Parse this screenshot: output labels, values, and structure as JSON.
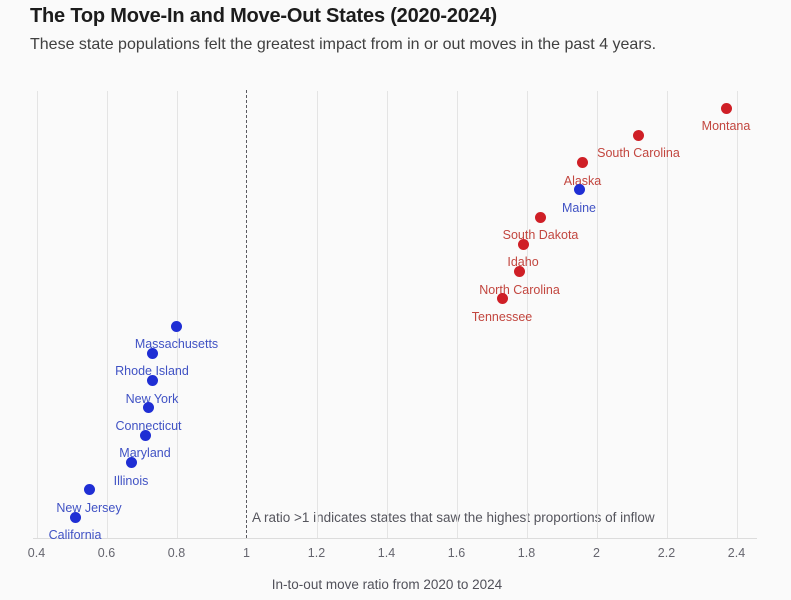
{
  "chart_data": {
    "type": "scatter",
    "title": "The Top Move-In and Move-Out States (2020-2024)",
    "subtitle": "These state populations felt the greatest impact from in or out moves in the past 4 years.",
    "xlabel": "In-to-out move ratio from 2020 to 2024",
    "ylabel": "",
    "y_encoding": "rank order, highest ratio at top",
    "xlim": [
      0.39,
      2.46
    ],
    "x_ticks": [
      0.4,
      0.6,
      0.8,
      1,
      1.2,
      1.4,
      1.6,
      1.8,
      2,
      2.2,
      2.4
    ],
    "x_tick_labels": [
      "0.4",
      "0.6",
      "0.8",
      "1",
      "1.2",
      "1.4",
      "1.6",
      "1.8",
      "2",
      "2.2",
      "2.4"
    ],
    "grid": "vertical gridlines only",
    "legend": "none",
    "reference_line_x": 1,
    "annotation": "A ratio >1 indicates states that saw the highest proportions of inflow",
    "points": [
      {
        "state": "Montana",
        "ratio": 2.37,
        "color_group": "red"
      },
      {
        "state": "South Carolina",
        "ratio": 2.12,
        "color_group": "red"
      },
      {
        "state": "Alaska",
        "ratio": 1.96,
        "color_group": "red"
      },
      {
        "state": "Maine",
        "ratio": 1.95,
        "color_group": "blue"
      },
      {
        "state": "South Dakota",
        "ratio": 1.84,
        "color_group": "red"
      },
      {
        "state": "Idaho",
        "ratio": 1.79,
        "color_group": "red"
      },
      {
        "state": "North Carolina",
        "ratio": 1.78,
        "color_group": "red"
      },
      {
        "state": "Tennessee",
        "ratio": 1.73,
        "color_group": "red"
      },
      {
        "state": "Massachusetts",
        "ratio": 0.8,
        "color_group": "blue"
      },
      {
        "state": "Rhode Island",
        "ratio": 0.73,
        "color_group": "blue"
      },
      {
        "state": "New York",
        "ratio": 0.73,
        "color_group": "blue"
      },
      {
        "state": "Connecticut",
        "ratio": 0.72,
        "color_group": "blue"
      },
      {
        "state": "Maryland",
        "ratio": 0.71,
        "color_group": "blue"
      },
      {
        "state": "Illinois",
        "ratio": 0.67,
        "color_group": "blue"
      },
      {
        "state": "New Jersey",
        "ratio": 0.55,
        "color_group": "blue"
      },
      {
        "state": "California",
        "ratio": 0.51,
        "color_group": "blue"
      }
    ],
    "colors": {
      "red_dot": "#cf1f26",
      "red_label": "#c2463f",
      "blue_dot": "#1f2ed4",
      "blue_label": "#4052c4",
      "gridline": "#e4e4e4",
      "axis_line": "#dcdcdc",
      "reference_line": "#5a5a60",
      "tick_label": "#65656e",
      "annotation_text": "#55555d",
      "axis_title": "#51515a",
      "title_text": "#1c1c1c",
      "subtitle_text": "#404040",
      "background": "#fafafa"
    }
  }
}
